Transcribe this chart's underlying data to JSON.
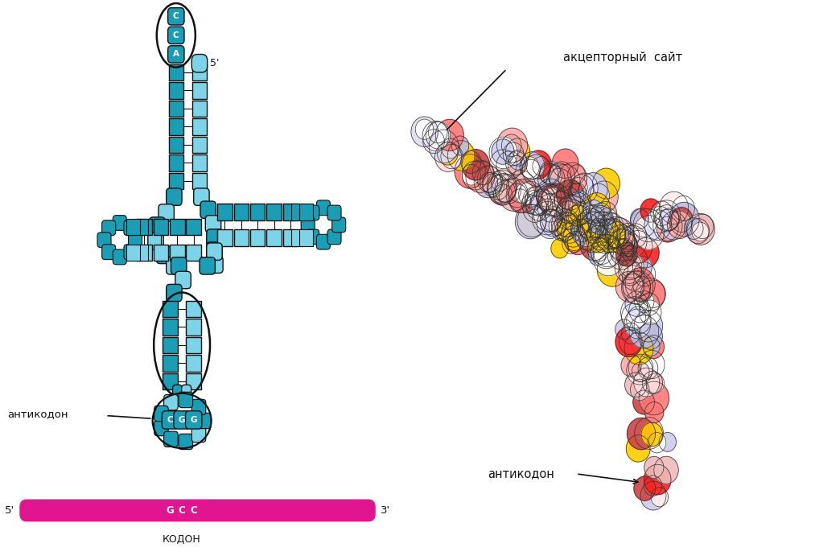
{
  "background_color": "#ffffff",
  "teal_dark": "#1a9db5",
  "teal_light": "#7dd4e8",
  "teal_strand": "#2ab8d0",
  "magenta": "#e0158f",
  "black": "#111111",
  "label_anticodon_left": "антикодон",
  "label_anticodon_right": "антикодон",
  "label_acceptor": "акцепторный  сайт",
  "label_codon": "КОДОН",
  "acc_letters": [
    "A",
    "C",
    "C"
  ],
  "anticodon_letters": [
    "C",
    "G",
    "G"
  ],
  "codon_letters": [
    "G",
    "C",
    "C"
  ],
  "mol_colors": [
    "#ffffff",
    "#ff2020",
    "#ffcc00",
    "#bbbbdd",
    "#ffaaaa",
    "#ddddff",
    "#ff7777",
    "#ffdddd",
    "#cc4444",
    "#eebbbb",
    "#ffeeee",
    "#ccccee"
  ],
  "mol_colors_tip": [
    "#ddddee",
    "#ccccdd",
    "#ffffff",
    "#eeeeff",
    "#ddddee"
  ]
}
